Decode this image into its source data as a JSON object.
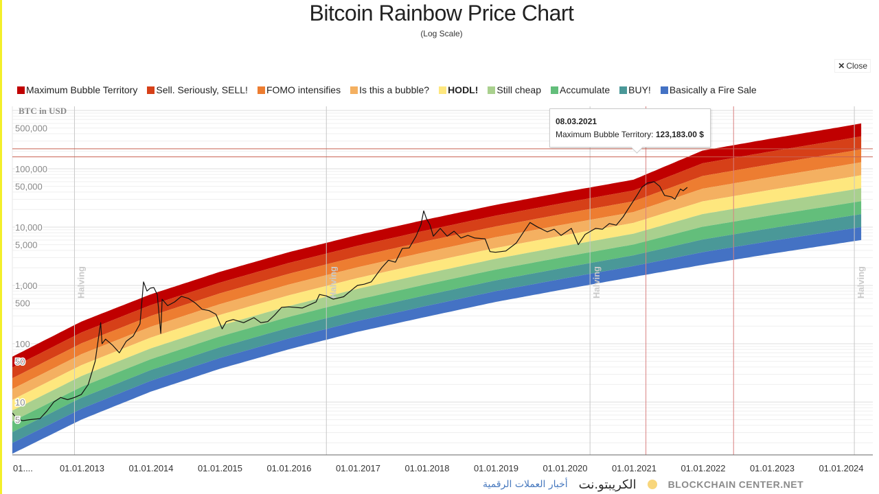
{
  "header": {
    "title": "Bitcoin Rainbow Price Chart",
    "subtitle": "(Log Scale)",
    "close_label": "Close"
  },
  "legend": [
    {
      "label": "Maximum Bubble Territory",
      "color": "#c00000",
      "bold": false
    },
    {
      "label": "Sell. Seriously, SELL!",
      "color": "#d64018",
      "bold": false
    },
    {
      "label": "FOMO intensifies",
      "color": "#ed7d31",
      "bold": false
    },
    {
      "label": "Is this a bubble?",
      "color": "#f4b061",
      "bold": false
    },
    {
      "label": "HODL!",
      "color": "#fee77e",
      "bold": true
    },
    {
      "label": "Still cheap",
      "color": "#a9d08e",
      "bold": false
    },
    {
      "label": "Accumulate",
      "color": "#63be7b",
      "bold": false
    },
    {
      "label": "BUY!",
      "color": "#4a9898",
      "bold": false
    },
    {
      "label": "Basically a Fire Sale",
      "color": "#4472c4",
      "bold": false
    }
  ],
  "tooltip": {
    "date": "08.03.2021",
    "series": "Maximum Bubble Territory:",
    "value": "123,183.00 $"
  },
  "watermark": {
    "brand_en_line1": "BLOCKCHAIN",
    "brand_en_line2": "CENTER.NET",
    "brand_ar": "الكريبتو.نت",
    "tagline_ar": "أخبار العملات الرقمية"
  },
  "chart_data": {
    "type": "area",
    "title": "Bitcoin Rainbow Price Chart",
    "subtitle": "(Log Scale)",
    "ylabel": "BTC in USD",
    "yscale": "log",
    "ylim": [
      1,
      1000000
    ],
    "xlim": [
      2012.0,
      2024.45
    ],
    "grid": true,
    "legend_position": "top",
    "y_ticks": [
      {
        "value": 500000,
        "label": "500,000"
      },
      {
        "value": 100000,
        "label": "100,000"
      },
      {
        "value": 50000,
        "label": "50,000"
      },
      {
        "value": 10000,
        "label": "10,000"
      },
      {
        "value": 5000,
        "label": "5,000"
      },
      {
        "value": 1000,
        "label": "1,000"
      },
      {
        "value": 500,
        "label": "500"
      },
      {
        "value": 100,
        "label": "100"
      },
      {
        "value": 50,
        "label": "50"
      },
      {
        "value": 10,
        "label": "10"
      },
      {
        "value": 5,
        "label": "5"
      }
    ],
    "x_ticks": [
      {
        "value": 2012.0,
        "label": "01...."
      },
      {
        "value": 2013.0,
        "label": "01.01.2013"
      },
      {
        "value": 2014.0,
        "label": "01.01.2014"
      },
      {
        "value": 2015.0,
        "label": "01.01.2015"
      },
      {
        "value": 2016.0,
        "label": "01.01.2016"
      },
      {
        "value": 2017.0,
        "label": "01.01.2017"
      },
      {
        "value": 2018.0,
        "label": "01.01.2018"
      },
      {
        "value": 2019.0,
        "label": "01.01.2019"
      },
      {
        "value": 2020.0,
        "label": "01.01.2020"
      },
      {
        "value": 2021.0,
        "label": "01.01.2021"
      },
      {
        "value": 2022.0,
        "label": "01.01.2022"
      },
      {
        "value": 2023.0,
        "label": "01.01.2023"
      },
      {
        "value": 2024.0,
        "label": "01.01.2024"
      }
    ],
    "halvings": [
      {
        "x": 2012.9,
        "label": "Halving"
      },
      {
        "x": 2016.55,
        "label": "Halving"
      },
      {
        "x": 2020.37,
        "label": "Halving"
      },
      {
        "x": 2024.2,
        "label": "Halving"
      }
    ],
    "crosshair_x": [
      2021.18,
      2022.45
    ],
    "crosshair_y": [
      220000,
      160000
    ],
    "bands": {
      "names": [
        "Maximum Bubble Territory",
        "Sell. Seriously, SELL!",
        "FOMO intensifies",
        "Is this a bubble?",
        "HODL!",
        "Still cheap",
        "Accumulate",
        "BUY!",
        "Basically a Fire Sale"
      ],
      "colors": [
        "#c00000",
        "#d64018",
        "#ed7d31",
        "#f4b061",
        "#fee77e",
        "#a9d08e",
        "#63be7b",
        "#4a9898",
        "#4472c4"
      ],
      "top_edge": [
        {
          "x": 2012.0,
          "y": 60
        },
        {
          "x": 2013.0,
          "y": 240
        },
        {
          "x": 2014.0,
          "y": 700
        },
        {
          "x": 2015.0,
          "y": 1700
        },
        {
          "x": 2016.0,
          "y": 3700
        },
        {
          "x": 2017.0,
          "y": 7300
        },
        {
          "x": 2018.0,
          "y": 13500
        },
        {
          "x": 2019.0,
          "y": 24000
        },
        {
          "x": 2020.0,
          "y": 40000
        },
        {
          "x": 2021.0,
          "y": 65000
        },
        {
          "x": 2021.18,
          "y": 123183
        },
        {
          "x": 2022.0,
          "y": 205000
        },
        {
          "x": 2023.0,
          "y": 330000
        },
        {
          "x": 2024.0,
          "y": 520000
        },
        {
          "x": 2024.3,
          "y": 600000
        }
      ],
      "bottom_edge": [
        {
          "x": 2012.0,
          "y": 1.3
        },
        {
          "x": 2013.0,
          "y": 5
        },
        {
          "x": 2014.0,
          "y": 15
        },
        {
          "x": 2015.0,
          "y": 37
        },
        {
          "x": 2016.0,
          "y": 80
        },
        {
          "x": 2017.0,
          "y": 160
        },
        {
          "x": 2018.0,
          "y": 290
        },
        {
          "x": 2019.0,
          "y": 520
        },
        {
          "x": 2020.0,
          "y": 860
        },
        {
          "x": 2021.0,
          "y": 1400
        },
        {
          "x": 2022.0,
          "y": 2250
        },
        {
          "x": 2023.0,
          "y": 3500
        },
        {
          "x": 2024.0,
          "y": 5300
        },
        {
          "x": 2024.3,
          "y": 6000
        }
      ]
    },
    "price_series": {
      "name": "BTC Price",
      "color": "#111111",
      "points": [
        {
          "x": 2012.0,
          "y": 6.5
        },
        {
          "x": 2012.05,
          "y": 5.5
        },
        {
          "x": 2012.1,
          "y": 5.0
        },
        {
          "x": 2012.15,
          "y": 4.8
        },
        {
          "x": 2012.25,
          "y": 5.0
        },
        {
          "x": 2012.4,
          "y": 5.2
        },
        {
          "x": 2012.5,
          "y": 7.0
        },
        {
          "x": 2012.6,
          "y": 10
        },
        {
          "x": 2012.7,
          "y": 12
        },
        {
          "x": 2012.8,
          "y": 11
        },
        {
          "x": 2012.9,
          "y": 12
        },
        {
          "x": 2013.0,
          "y": 13.5
        },
        {
          "x": 2013.1,
          "y": 20
        },
        {
          "x": 2013.2,
          "y": 50
        },
        {
          "x": 2013.28,
          "y": 230
        },
        {
          "x": 2013.3,
          "y": 100
        },
        {
          "x": 2013.35,
          "y": 120
        },
        {
          "x": 2013.45,
          "y": 95
        },
        {
          "x": 2013.55,
          "y": 70
        },
        {
          "x": 2013.65,
          "y": 110
        },
        {
          "x": 2013.75,
          "y": 135
        },
        {
          "x": 2013.85,
          "y": 220
        },
        {
          "x": 2013.9,
          "y": 1150
        },
        {
          "x": 2013.95,
          "y": 800
        },
        {
          "x": 2014.0,
          "y": 900
        },
        {
          "x": 2014.05,
          "y": 920
        },
        {
          "x": 2014.1,
          "y": 700
        },
        {
          "x": 2014.15,
          "y": 150
        },
        {
          "x": 2014.17,
          "y": 580
        },
        {
          "x": 2014.25,
          "y": 450
        },
        {
          "x": 2014.35,
          "y": 520
        },
        {
          "x": 2014.45,
          "y": 650
        },
        {
          "x": 2014.55,
          "y": 600
        },
        {
          "x": 2014.65,
          "y": 500
        },
        {
          "x": 2014.75,
          "y": 390
        },
        {
          "x": 2014.85,
          "y": 370
        },
        {
          "x": 2014.95,
          "y": 320
        },
        {
          "x": 2015.04,
          "y": 180
        },
        {
          "x": 2015.1,
          "y": 240
        },
        {
          "x": 2015.2,
          "y": 260
        },
        {
          "x": 2015.35,
          "y": 230
        },
        {
          "x": 2015.5,
          "y": 280
        },
        {
          "x": 2015.6,
          "y": 230
        },
        {
          "x": 2015.7,
          "y": 240
        },
        {
          "x": 2015.8,
          "y": 310
        },
        {
          "x": 2015.9,
          "y": 420
        },
        {
          "x": 2016.0,
          "y": 430
        },
        {
          "x": 2016.2,
          "y": 410
        },
        {
          "x": 2016.4,
          "y": 520
        },
        {
          "x": 2016.45,
          "y": 700
        },
        {
          "x": 2016.55,
          "y": 660
        },
        {
          "x": 2016.65,
          "y": 580
        },
        {
          "x": 2016.8,
          "y": 640
        },
        {
          "x": 2016.95,
          "y": 900
        },
        {
          "x": 2017.0,
          "y": 1000
        },
        {
          "x": 2017.1,
          "y": 1050
        },
        {
          "x": 2017.2,
          "y": 1150
        },
        {
          "x": 2017.35,
          "y": 2000
        },
        {
          "x": 2017.45,
          "y": 2700
        },
        {
          "x": 2017.55,
          "y": 2500
        },
        {
          "x": 2017.65,
          "y": 4300
        },
        {
          "x": 2017.75,
          "y": 4400
        },
        {
          "x": 2017.85,
          "y": 7000
        },
        {
          "x": 2017.92,
          "y": 11000
        },
        {
          "x": 2017.96,
          "y": 19000
        },
        {
          "x": 2018.0,
          "y": 14000
        },
        {
          "x": 2018.05,
          "y": 11000
        },
        {
          "x": 2018.1,
          "y": 7000
        },
        {
          "x": 2018.2,
          "y": 9500
        },
        {
          "x": 2018.3,
          "y": 7000
        },
        {
          "x": 2018.4,
          "y": 8500
        },
        {
          "x": 2018.5,
          "y": 6500
        },
        {
          "x": 2018.6,
          "y": 7200
        },
        {
          "x": 2018.7,
          "y": 6500
        },
        {
          "x": 2018.85,
          "y": 6300
        },
        {
          "x": 2018.92,
          "y": 3800
        },
        {
          "x": 2019.0,
          "y": 3700
        },
        {
          "x": 2019.15,
          "y": 3900
        },
        {
          "x": 2019.3,
          "y": 5300
        },
        {
          "x": 2019.4,
          "y": 8000
        },
        {
          "x": 2019.5,
          "y": 12000
        },
        {
          "x": 2019.6,
          "y": 10200
        },
        {
          "x": 2019.75,
          "y": 8300
        },
        {
          "x": 2019.85,
          "y": 9200
        },
        {
          "x": 2019.95,
          "y": 7200
        },
        {
          "x": 2020.1,
          "y": 9500
        },
        {
          "x": 2020.2,
          "y": 5000
        },
        {
          "x": 2020.3,
          "y": 7500
        },
        {
          "x": 2020.45,
          "y": 9500
        },
        {
          "x": 2020.55,
          "y": 9200
        },
        {
          "x": 2020.65,
          "y": 11500
        },
        {
          "x": 2020.75,
          "y": 10800
        },
        {
          "x": 2020.85,
          "y": 15000
        },
        {
          "x": 2020.95,
          "y": 23000
        },
        {
          "x": 2021.05,
          "y": 35000
        },
        {
          "x": 2021.12,
          "y": 48000
        },
        {
          "x": 2021.2,
          "y": 57000
        },
        {
          "x": 2021.3,
          "y": 60000
        },
        {
          "x": 2021.38,
          "y": 50000
        },
        {
          "x": 2021.45,
          "y": 35000
        },
        {
          "x": 2021.55,
          "y": 33000
        },
        {
          "x": 2021.6,
          "y": 30000
        },
        {
          "x": 2021.68,
          "y": 45000
        },
        {
          "x": 2021.72,
          "y": 42000
        },
        {
          "x": 2021.78,
          "y": 48000
        }
      ]
    }
  }
}
